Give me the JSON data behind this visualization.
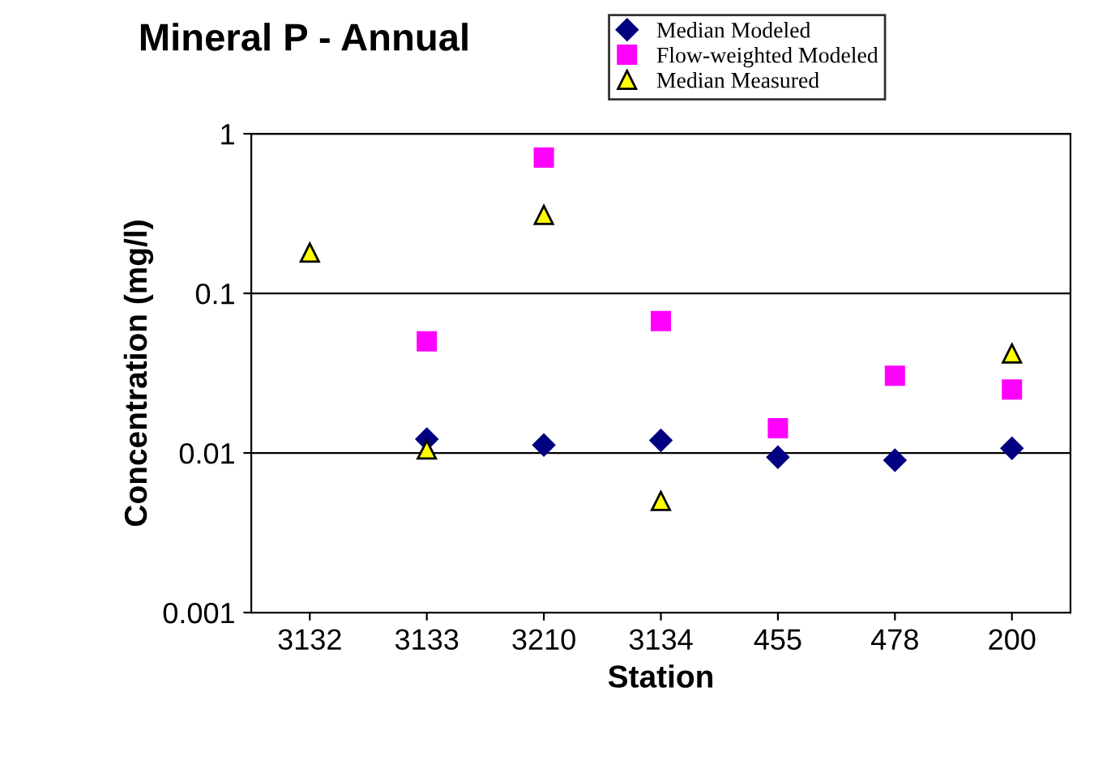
{
  "chart_data": {
    "type": "scatter",
    "title": "Mineral P - Annual",
    "xlabel": "Station",
    "ylabel": "Concentration (mg/l)",
    "categories": [
      "3132",
      "3133",
      "3210",
      "3134",
      "455",
      "478",
      "200"
    ],
    "series": [
      {
        "name": "Median Modeled",
        "color": "#000080",
        "marker": "diamond",
        "values": [
          null,
          0.0122,
          0.0112,
          0.012,
          0.0094,
          0.009,
          0.0107
        ]
      },
      {
        "name": "Flow-weighted Modeled",
        "color": "#ff00ff",
        "marker": "square",
        "values": [
          null,
          0.05,
          0.71,
          0.067,
          0.0143,
          0.0305,
          0.025
        ]
      },
      {
        "name": "Median Measured",
        "color": "#ffff00",
        "marker": "triangle",
        "values": [
          0.18,
          0.0105,
          0.31,
          0.005,
          null,
          null,
          0.042
        ]
      }
    ],
    "log": "y",
    "ylim": [
      0.001,
      1
    ],
    "yticks": [
      0.001,
      0.01,
      0.1,
      1
    ],
    "grid": "y",
    "legend": "top right"
  }
}
